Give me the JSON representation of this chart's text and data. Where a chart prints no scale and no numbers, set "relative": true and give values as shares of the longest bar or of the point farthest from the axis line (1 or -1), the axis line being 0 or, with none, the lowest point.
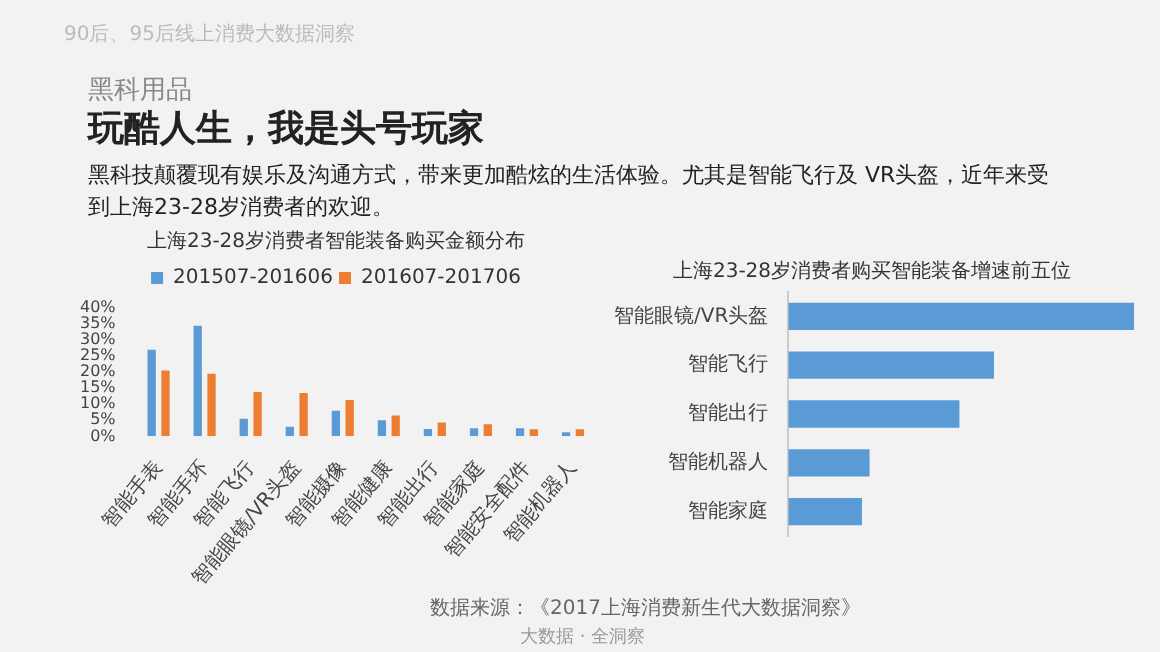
{
  "chart_data": [
    {
      "type": "bar",
      "title": "上海23-28岁消费者智能装备购买金额分布",
      "annotations": [
        "90后、95后线上消费大数据洞察",
        "黑科用品",
        "玩酷人生，我是头号玩家",
        "黑科技颠覆现有娱乐及沟通方式，带来更加酷炫的生活体验。尤其是智能飞行及 VR头盔，近年来受到上海23-28岁消费者的欢迎。",
        "数据来源：《2017上海消费新生代大数据洞察》",
        "大数据 · 全洞察"
      ],
      "categories": [
        "智能手表",
        "智能手环",
        "智能飞行",
        "智能眼镜/VR头盔",
        "智能摄像",
        "智能健康",
        "智能出行",
        "智能家庭",
        "智能安全配件",
        "智能机器人"
      ],
      "series": [
        {
          "name": "201507-201606",
          "color": "#5b9bd5",
          "values": [
            27,
            34.5,
            5.5,
            3,
            8,
            5,
            2.3,
            2.5,
            2.5,
            1.3
          ]
        },
        {
          "name": "201607-201706",
          "color": "#ed7d31",
          "values": [
            20.5,
            19.5,
            13.8,
            13.5,
            11.3,
            6.5,
            4.3,
            3.8,
            2.2,
            2.2
          ]
        }
      ],
      "ylim": [
        0,
        40
      ],
      "yticks": [
        {
          "value": 0,
          "label": "0%"
        },
        {
          "value": 5,
          "label": "5%"
        },
        {
          "value": 10,
          "label": "10%"
        },
        {
          "value": 15,
          "label": "15%"
        },
        {
          "value": 20,
          "label": "20%"
        },
        {
          "value": 25,
          "label": "25%"
        },
        {
          "value": 30,
          "label": "30%"
        },
        {
          "value": 35,
          "label": "35%"
        },
        {
          "value": 40,
          "label": "40%"
        }
      ],
      "grid": false,
      "legend": "top"
    },
    {
      "type": "bar",
      "title": "上海23-28岁消费者购买智能装备增速前五位",
      "orientation": "horizontal",
      "relative": true,
      "categories": [
        "智能眼镜/VR头盔",
        "智能飞行",
        "智能出行",
        "智能机器人",
        "智能家庭"
      ],
      "values": [
        1,
        0.595,
        0.495,
        0.235,
        0.213
      ],
      "color": "#5b9bd5",
      "grid": false
    }
  ]
}
